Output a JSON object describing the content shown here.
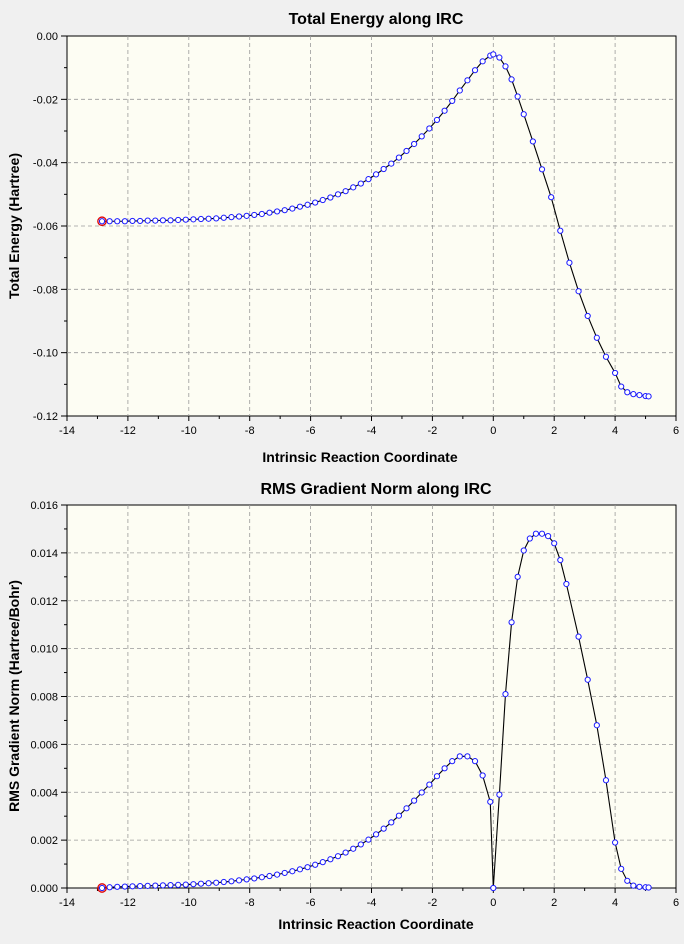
{
  "chart_data": [
    {
      "type": "line",
      "title": "Total Energy along IRC",
      "xlabel": "Intrinsic Reaction Coordinate",
      "ylabel": "Total Energy (Hartree)",
      "xlim": [
        -14,
        6
      ],
      "ylim": [
        -0.12,
        0.0
      ],
      "xticks": [
        -14,
        -12,
        -10,
        -8,
        -6,
        -4,
        -2,
        0,
        2,
        4,
        6
      ],
      "yticks": [
        0.0,
        -0.02,
        -0.04,
        -0.06,
        -0.08,
        -0.1,
        -0.12
      ],
      "ytick_labels": [
        "0.00",
        "-0.02",
        "-0.04",
        "-0.06",
        "-0.08",
        "-0.10",
        "-0.12"
      ],
      "grid": true,
      "start_marker": {
        "x": -12.85,
        "y": -0.0585,
        "color": "#e00000"
      },
      "series": [
        {
          "color": "#1a1aff",
          "x": [
            -12.85,
            -12.6,
            -12.35,
            -12.1,
            -11.85,
            -11.6,
            -11.35,
            -11.1,
            -10.85,
            -10.6,
            -10.35,
            -10.1,
            -9.85,
            -9.6,
            -9.35,
            -9.1,
            -8.85,
            -8.6,
            -8.35,
            -8.1,
            -7.85,
            -7.6,
            -7.35,
            -7.1,
            -6.85,
            -6.6,
            -6.35,
            -6.1,
            -5.85,
            -5.6,
            -5.35,
            -5.1,
            -4.85,
            -4.6,
            -4.35,
            -4.1,
            -3.85,
            -3.6,
            -3.35,
            -3.1,
            -2.85,
            -2.6,
            -2.35,
            -2.1,
            -1.85,
            -1.6,
            -1.35,
            -1.1,
            -0.85,
            -0.6,
            -0.35,
            -0.1,
            0.0,
            0.2,
            0.4,
            0.6,
            0.8,
            1.0,
            1.3,
            1.6,
            1.9,
            2.2,
            2.5,
            2.8,
            3.1,
            3.4,
            3.7,
            4.0,
            4.2,
            4.4,
            4.6,
            4.8,
            5.0,
            5.1
          ],
          "y": [
            -0.0585,
            -0.0585,
            -0.0585,
            -0.0585,
            -0.0584,
            -0.0584,
            -0.0583,
            -0.0583,
            -0.0582,
            -0.0582,
            -0.0581,
            -0.058,
            -0.0579,
            -0.0578,
            -0.0577,
            -0.0576,
            -0.0574,
            -0.0572,
            -0.057,
            -0.0568,
            -0.0565,
            -0.0562,
            -0.0558,
            -0.0554,
            -0.055,
            -0.0545,
            -0.0539,
            -0.0533,
            -0.0526,
            -0.0518,
            -0.051,
            -0.05,
            -0.049,
            -0.0478,
            -0.0466,
            -0.0452,
            -0.0437,
            -0.042,
            -0.0403,
            -0.0384,
            -0.0363,
            -0.0341,
            -0.0317,
            -0.0292,
            -0.0265,
            -0.0236,
            -0.0205,
            -0.0172,
            -0.014,
            -0.0108,
            -0.008,
            -0.0062,
            -0.0058,
            -0.0068,
            -0.0096,
            -0.0137,
            -0.0191,
            -0.0247,
            -0.0333,
            -0.0421,
            -0.0509,
            -0.0615,
            -0.0716,
            -0.0806,
            -0.0884,
            -0.0953,
            -0.1013,
            -0.1064,
            -0.1107,
            -0.1125,
            -0.1131,
            -0.1134,
            -0.1137,
            -0.1138
          ]
        }
      ]
    },
    {
      "type": "line",
      "title": "RMS Gradient Norm along IRC",
      "xlabel": "Intrinsic Reaction Coordinate",
      "ylabel": "RMS Gradient Norm (Hartree/Bohr)",
      "xlim": [
        -14,
        6
      ],
      "ylim": [
        0.0,
        0.016
      ],
      "xticks": [
        -14,
        -12,
        -10,
        -8,
        -6,
        -4,
        -2,
        0,
        2,
        4,
        6
      ],
      "yticks": [
        0.0,
        0.002,
        0.004,
        0.006,
        0.008,
        0.01,
        0.012,
        0.014,
        0.016
      ],
      "ytick_labels": [
        "0.000",
        "0.002",
        "0.004",
        "0.006",
        "0.008",
        "0.010",
        "0.012",
        "0.014",
        "0.016"
      ],
      "grid": true,
      "start_marker": {
        "x": -12.85,
        "y": 0.0,
        "color": "#e00000"
      },
      "series": [
        {
          "color": "#1a1aff",
          "x": [
            -12.85,
            -12.6,
            -12.35,
            -12.1,
            -11.85,
            -11.6,
            -11.35,
            -11.1,
            -10.85,
            -10.6,
            -10.35,
            -10.1,
            -9.85,
            -9.6,
            -9.35,
            -9.1,
            -8.85,
            -8.6,
            -8.35,
            -8.1,
            -7.85,
            -7.6,
            -7.35,
            -7.1,
            -6.85,
            -6.6,
            -6.35,
            -6.1,
            -5.85,
            -5.6,
            -5.35,
            -5.1,
            -4.85,
            -4.6,
            -4.35,
            -4.1,
            -3.85,
            -3.6,
            -3.35,
            -3.1,
            -2.85,
            -2.6,
            -2.35,
            -2.1,
            -1.85,
            -1.6,
            -1.35,
            -1.1,
            -0.85,
            -0.6,
            -0.35,
            -0.1,
            0.0,
            0.2,
            0.4,
            0.6,
            0.8,
            1.0,
            1.2,
            1.4,
            1.6,
            1.8,
            2.0,
            2.2,
            2.4,
            2.8,
            3.1,
            3.4,
            3.7,
            4.0,
            4.2,
            4.4,
            4.6,
            4.8,
            5.0,
            5.1
          ],
          "y": [
            0.0,
            3e-05,
            5e-05,
            6e-05,
            7e-05,
            8e-05,
            9e-05,
            0.0001,
            0.00011,
            0.00012,
            0.00013,
            0.00014,
            0.00016,
            0.00018,
            0.0002,
            0.00022,
            0.00025,
            0.00028,
            0.00032,
            0.00036,
            0.0004,
            0.00045,
            0.0005,
            0.00056,
            0.00063,
            0.0007,
            0.00078,
            0.00087,
            0.00097,
            0.00108,
            0.0012,
            0.00133,
            0.00148,
            0.00164,
            0.00182,
            0.00202,
            0.00224,
            0.00248,
            0.00274,
            0.00302,
            0.00333,
            0.00365,
            0.00399,
            0.00432,
            0.00467,
            0.005,
            0.0053,
            0.0055,
            0.0055,
            0.0053,
            0.0047,
            0.0036,
            0.0,
            0.0039,
            0.0081,
            0.0111,
            0.013,
            0.0141,
            0.0146,
            0.0148,
            0.0148,
            0.0147,
            0.0144,
            0.0137,
            0.0127,
            0.0105,
            0.0087,
            0.0068,
            0.0045,
            0.0019,
            0.0008,
            0.0003,
            0.0001,
            5e-05,
            3e-05,
            2e-05
          ]
        }
      ]
    }
  ]
}
